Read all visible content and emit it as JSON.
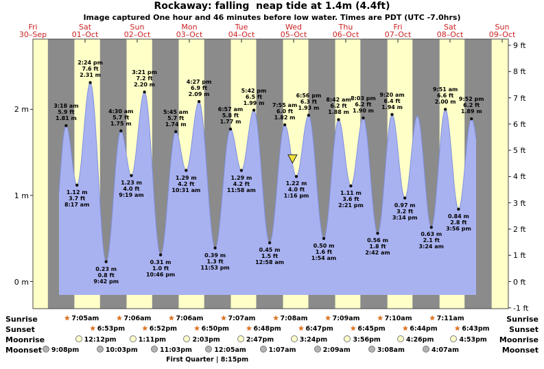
{
  "title": "Rockaway: falling  neap tide at 1.4m (4.4ft)",
  "subtitle": "Image captured One hour and 46 minutes before low water. Times are PDT (UTC -7.0hrs)",
  "colors": {
    "night_band": "#8b8b8b",
    "day_band": "#ffffc8",
    "tide_fill": "#a9b2f0",
    "tide_edge": "#7f90e0",
    "date_red": "#cc2020",
    "marker_yellow": "#efe23d",
    "sun_icon": "#e07818",
    "moonrise_icon": "#ffffcc",
    "moonset_icon": "#b3b3b3"
  },
  "chart_data": {
    "type": "area",
    "title": "Rockaway: falling  neap tide at 1.4m (4.4ft)",
    "y_left_unit": "m",
    "y_right_unit": "ft",
    "y_left_ticks": [
      "2 m",
      "1 m",
      "0 m"
    ],
    "y_right_ticks": [
      "9 ft",
      "8 ft",
      "7 ft",
      "6 ft",
      "5 ft",
      "4 ft",
      "3 ft",
      "2 ft",
      "1 ft",
      "0 ft",
      "-1 ft"
    ],
    "ylim_ft": [
      -1,
      9
    ],
    "days": [
      {
        "name": "Fri",
        "date": "30–Sep"
      },
      {
        "name": "Sat",
        "date": "01–Oct"
      },
      {
        "name": "Sun",
        "date": "02–Oct"
      },
      {
        "name": "Mon",
        "date": "03–Oct"
      },
      {
        "name": "Tue",
        "date": "04–Oct"
      },
      {
        "name": "Wed",
        "date": "05–Oct"
      },
      {
        "name": "Thu",
        "date": "06–Oct"
      },
      {
        "name": "Fri",
        "date": "07–Oct"
      },
      {
        "name": "Sat",
        "date": "08–Oct"
      },
      {
        "name": "Sun",
        "date": "09–Oct"
      }
    ],
    "tide_events": [
      {
        "day": 1,
        "hour": 3.3,
        "type": "high",
        "time": "3:18 am",
        "ft": "5.9 ft",
        "m": "1.81 m",
        "height_m": 1.81,
        "labeled": true
      },
      {
        "day": 1,
        "hour": 8.28,
        "type": "low",
        "time": "8:17 am",
        "ft": "3.7 ft",
        "m": "1.12 m",
        "height_m": 1.12,
        "labeled": true
      },
      {
        "day": 1,
        "hour": 14.4,
        "type": "high",
        "time": "2:24 pm",
        "ft": "7.6 ft",
        "m": "2.31 m",
        "height_m": 2.31,
        "labeled": true
      },
      {
        "day": 1,
        "hour": 21.7,
        "type": "low",
        "time": "9:42 pm",
        "ft": "0.8 ft",
        "m": "0.23 m",
        "height_m": 0.23,
        "labeled": true
      },
      {
        "day": 2,
        "hour": 4.5,
        "type": "high",
        "time": "4:30 am",
        "ft": "5.7 ft",
        "m": "1.75 m",
        "height_m": 1.75,
        "labeled": true
      },
      {
        "day": 2,
        "hour": 9.32,
        "type": "low",
        "time": "9:19 am",
        "ft": "4.0 ft",
        "m": "1.23 m",
        "height_m": 1.23,
        "labeled": true
      },
      {
        "day": 2,
        "hour": 15.35,
        "type": "high",
        "time": "3:21 pm",
        "ft": "7.2 ft",
        "m": "2.20 m",
        "height_m": 2.2,
        "labeled": true
      },
      {
        "day": 2,
        "hour": 22.77,
        "type": "low",
        "time": "10:46 pm",
        "ft": "1.0 ft",
        "m": "0.31 m",
        "height_m": 0.31,
        "labeled": true
      },
      {
        "day": 3,
        "hour": 5.75,
        "type": "high",
        "time": "5:45 am",
        "ft": "5.7 ft",
        "m": "1.74 m",
        "height_m": 1.74,
        "labeled": true
      },
      {
        "day": 3,
        "hour": 10.52,
        "type": "low",
        "time": "10:31 am",
        "ft": "4.2 ft",
        "m": "1.29 m",
        "height_m": 1.29,
        "labeled": true
      },
      {
        "day": 3,
        "hour": 16.45,
        "type": "high",
        "time": "4:27 pm",
        "ft": "6.9 ft",
        "m": "2.09 m",
        "height_m": 2.09,
        "labeled": true
      },
      {
        "day": 3,
        "hour": 23.88,
        "type": "low",
        "time": "11:53 pm",
        "ft": "1.3 ft",
        "m": "0.39 m",
        "height_m": 0.39,
        "labeled": true
      },
      {
        "day": 4,
        "hour": 6.95,
        "type": "high",
        "time": "6:57 am",
        "ft": "5.8 ft",
        "m": "1.77 m",
        "height_m": 1.77,
        "labeled": true
      },
      {
        "day": 4,
        "hour": 11.97,
        "type": "low",
        "time": "11:58 am",
        "ft": "4.2 ft",
        "m": "1.29 m",
        "height_m": 1.29,
        "labeled": true
      },
      {
        "day": 4,
        "hour": 17.7,
        "type": "high",
        "time": "5:42 pm",
        "ft": "6.5 ft",
        "m": "1.99 m",
        "height_m": 1.99,
        "labeled": true
      },
      {
        "day": 5,
        "hour": 0.97,
        "type": "low",
        "time": "12:58 am",
        "ft": "1.5 ft",
        "m": "0.45 m",
        "height_m": 0.45,
        "labeled": true
      },
      {
        "day": 5,
        "hour": 7.92,
        "type": "high",
        "time": "7:55 am",
        "ft": "6.0 ft",
        "m": "1.82 m",
        "height_m": 1.82,
        "labeled": true
      },
      {
        "day": 5,
        "hour": 13.27,
        "type": "low",
        "time": "1:16 pm",
        "ft": "4.0 ft",
        "m": "1.22 m",
        "height_m": 1.22,
        "labeled": true
      },
      {
        "day": 5,
        "hour": 18.93,
        "type": "high",
        "time": "6:56 pm",
        "ft": "6.3 ft",
        "m": "1.93 m",
        "height_m": 1.93,
        "labeled": true
      },
      {
        "day": 6,
        "hour": 1.9,
        "type": "low",
        "time": "1:54 am",
        "ft": "1.6 ft",
        "m": "0.50 m",
        "height_m": 0.5,
        "labeled": true
      },
      {
        "day": 6,
        "hour": 8.7,
        "type": "high",
        "time": "8:42 am",
        "ft": "6.2 ft",
        "m": "1.88 m",
        "height_m": 1.88,
        "labeled": true
      },
      {
        "day": 6,
        "hour": 14.35,
        "type": "low",
        "time": "2:21 pm",
        "ft": "3.6 ft",
        "m": "1.11 m",
        "height_m": 1.11,
        "labeled": true
      },
      {
        "day": 6,
        "hour": 20.05,
        "type": "high",
        "time": "8:03 pm",
        "ft": "6.2 ft",
        "m": "1.90 m",
        "height_m": 1.9,
        "labeled": true
      },
      {
        "day": 7,
        "hour": 2.7,
        "type": "low",
        "time": "2:42 am",
        "ft": "1.8 ft",
        "m": "0.56 m",
        "height_m": 0.56,
        "labeled": true
      },
      {
        "day": 7,
        "hour": 9.33,
        "type": "high",
        "time": "9:20 am",
        "ft": "6.4 ft",
        "m": "1.94 m",
        "height_m": 1.94,
        "labeled": true
      },
      {
        "day": 7,
        "hour": 15.23,
        "type": "low",
        "time": "3:14 pm",
        "ft": "3.2 ft",
        "m": "0.97 m",
        "height_m": 0.97,
        "labeled": true
      },
      {
        "day": 7,
        "hour": 20.97,
        "type": "high",
        "height_m": 1.92,
        "labeled": false
      },
      {
        "day": 8,
        "hour": 3.4,
        "type": "low",
        "time": "3:24 am",
        "ft": "2.1 ft",
        "m": "0.63 m",
        "height_m": 0.63,
        "labeled": true
      },
      {
        "day": 8,
        "hour": 9.85,
        "type": "high",
        "time": "9:51 am",
        "ft": "6.6 ft",
        "m": "2.00 m",
        "height_m": 2.0,
        "labeled": true
      },
      {
        "day": 8,
        "hour": 15.93,
        "type": "low",
        "time": "3:56 pm",
        "ft": "2.8 ft",
        "m": "0.84 m",
        "height_m": 0.84,
        "labeled": true
      },
      {
        "day": 8,
        "hour": 21.87,
        "type": "high",
        "time": "9:52 pm",
        "ft": "6.2 ft",
        "m": "1.89 m",
        "height_m": 1.89,
        "labeled": true
      }
    ],
    "curve_boundaries": {
      "start": {
        "day": 1,
        "hour": 0
      },
      "end": {
        "day": 9,
        "hour": 0
      },
      "pre_extreme": {
        "day": 0,
        "hour": 20.6,
        "height_m": 0.2
      },
      "post_extreme": {
        "day": 9,
        "hour": 4.4,
        "height_m": 0.9
      }
    },
    "current_marker": {
      "day": 5,
      "hour": 11.5,
      "height_m": 1.4
    }
  },
  "astro": {
    "rows": [
      {
        "key": "sunrise",
        "label": "Sunrise",
        "icon": "sun-star-icon",
        "items": [
          {
            "day": 1,
            "time": "7:05am"
          },
          {
            "day": 2,
            "time": "7:06am"
          },
          {
            "day": 3,
            "time": "7:06am"
          },
          {
            "day": 4,
            "time": "7:07am"
          },
          {
            "day": 5,
            "time": "7:08am"
          },
          {
            "day": 6,
            "time": "7:09am"
          },
          {
            "day": 7,
            "time": "7:10am"
          },
          {
            "day": 8,
            "time": "7:11am"
          }
        ]
      },
      {
        "key": "sunset",
        "label": "Sunset",
        "icon": "sun-star-icon",
        "items": [
          {
            "day": 1,
            "time": "6:53pm"
          },
          {
            "day": 2,
            "time": "6:52pm"
          },
          {
            "day": 3,
            "time": "6:50pm"
          },
          {
            "day": 4,
            "time": "6:48pm"
          },
          {
            "day": 5,
            "time": "6:47pm"
          },
          {
            "day": 6,
            "time": "6:45pm"
          },
          {
            "day": 7,
            "time": "6:44pm"
          },
          {
            "day": 8,
            "time": "6:43pm"
          }
        ]
      },
      {
        "key": "moonrise",
        "label": "Moonrise",
        "icon": "moon-light-icon",
        "items": [
          {
            "day": 1,
            "time": "12:12pm"
          },
          {
            "day": 2,
            "time": "1:11pm"
          },
          {
            "day": 3,
            "time": "2:03pm"
          },
          {
            "day": 4,
            "time": "2:47pm"
          },
          {
            "day": 5,
            "time": "3:24pm"
          },
          {
            "day": 6,
            "time": "3:56pm"
          },
          {
            "day": 7,
            "time": "4:26pm"
          },
          {
            "day": 8,
            "time": "4:53pm"
          }
        ]
      },
      {
        "key": "moonset",
        "label": "Moonset",
        "icon": "moon-dark-icon",
        "items": [
          {
            "day": 0,
            "time": "9:08pm"
          },
          {
            "day": 1,
            "time": "10:03pm"
          },
          {
            "day": 2,
            "time": "11:03pm"
          },
          {
            "day": 4,
            "time": "12:05am"
          },
          {
            "day": 5,
            "time": "1:07am"
          },
          {
            "day": 6,
            "time": "2:09am"
          },
          {
            "day": 7,
            "time": "3:08am"
          },
          {
            "day": 8,
            "time": "4:07am"
          }
        ]
      }
    ],
    "moon_phase": {
      "text": "First Quarter | 8:15pm",
      "day": 3,
      "hour": 20.25
    }
  }
}
